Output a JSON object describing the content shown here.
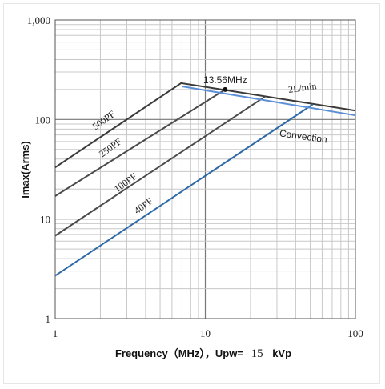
{
  "chart_data": {
    "type": "line",
    "x_scale": "log",
    "y_scale": "log",
    "xlim": [
      1,
      100
    ],
    "ylim": [
      1,
      1000
    ],
    "grid": true,
    "x_ticks": [
      "1",
      "10",
      "100"
    ],
    "y_ticks": [
      "1",
      "10",
      "100",
      "1,000"
    ],
    "xlabel_parts": {
      "pre": "Frequency（MHz），Upw=",
      "num": "15",
      "unit": "kVp"
    },
    "ylabel": "Imax(Arms)",
    "series": [
      {
        "label": "500PF",
        "color": "#3a3a3a",
        "points": [
          [
            1,
            33
          ],
          [
            6.9,
            232
          ],
          [
            100,
            123
          ]
        ]
      },
      {
        "label": "250PF",
        "color": "#4a4a4a",
        "points": [
          [
            1,
            17
          ],
          [
            13.56,
            200
          ]
        ]
      },
      {
        "label": "100PF",
        "color": "#4a4a4a",
        "points": [
          [
            1,
            6.8
          ],
          [
            25,
            170
          ]
        ]
      },
      {
        "label": "40PF",
        "color": "#2e6aa8",
        "points": [
          [
            1,
            2.7
          ],
          [
            52,
            142
          ]
        ]
      },
      {
        "label": "Convection",
        "color": "#5b8fd6",
        "points": [
          [
            7,
            215
          ],
          [
            100,
            110
          ]
        ]
      }
    ],
    "annotations": [
      {
        "text": "13.56MHz",
        "x": 13.56,
        "y": 200,
        "marker": true
      },
      {
        "text": "2L/min"
      },
      {
        "text": "Convection"
      }
    ]
  }
}
